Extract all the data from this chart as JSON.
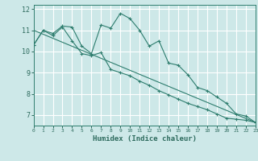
{
  "xlabel": "Humidex (Indice chaleur)",
  "ylabel": "",
  "background_color": "#cde8e8",
  "grid_color": "#ffffff",
  "line_color": "#2e7d6e",
  "xlim": [
    0,
    23
  ],
  "ylim": [
    6.5,
    12.2
  ],
  "x_ticks": [
    0,
    1,
    2,
    3,
    4,
    5,
    6,
    7,
    8,
    9,
    10,
    11,
    12,
    13,
    14,
    15,
    16,
    17,
    18,
    19,
    20,
    21,
    22,
    23
  ],
  "y_ticks": [
    7,
    8,
    9,
    10,
    11,
    12
  ],
  "series1_x": [
    0,
    1,
    2,
    3,
    4,
    5,
    6,
    7,
    8,
    9,
    10,
    11,
    12,
    13,
    14,
    15,
    16,
    17,
    18,
    19,
    20,
    21,
    22,
    23
  ],
  "series1_y": [
    10.3,
    11.0,
    10.85,
    11.2,
    11.15,
    10.25,
    9.9,
    11.25,
    11.1,
    11.8,
    11.55,
    11.0,
    10.25,
    10.5,
    9.45,
    9.35,
    8.9,
    8.3,
    8.15,
    7.85,
    7.55,
    7.05,
    6.95,
    6.65
  ],
  "series2_x": [
    0,
    1,
    2,
    3,
    4,
    5,
    6,
    7,
    8,
    9,
    10,
    11,
    12,
    13,
    14,
    15,
    16,
    17,
    18,
    19,
    20,
    21,
    22,
    23
  ],
  "series2_y": [
    10.3,
    11.0,
    10.75,
    11.15,
    10.5,
    9.9,
    9.8,
    9.95,
    9.15,
    9.0,
    8.85,
    8.6,
    8.4,
    8.15,
    7.95,
    7.75,
    7.55,
    7.4,
    7.25,
    7.05,
    6.85,
    6.8,
    6.75,
    6.65
  ],
  "series3_x": [
    0,
    23
  ],
  "series3_y": [
    11.0,
    6.65
  ]
}
